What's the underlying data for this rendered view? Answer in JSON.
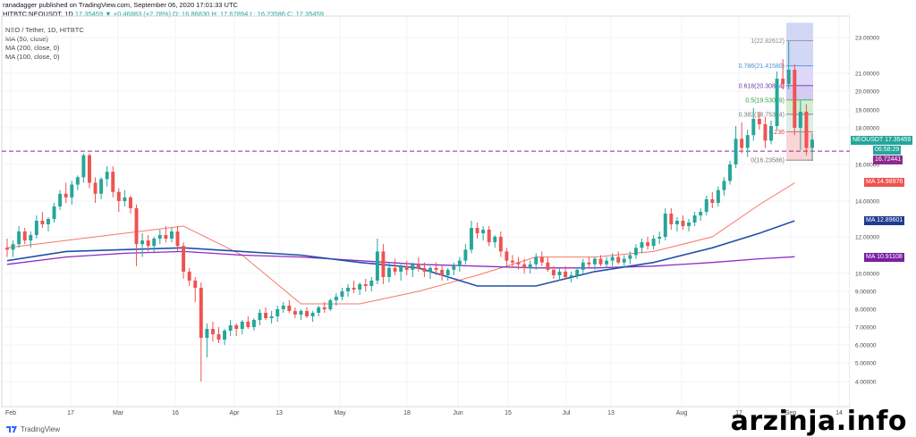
{
  "header": {
    "line1": "ranadagger published on TradingView.com, September 06, 2020 17:01:33 UTC",
    "symbol": "HITBTC:NEOUSDT, 1D",
    "ohlc": "17.35459 ▼ +0.46883 (+2.78%) O: 16.86830 H: 17.67894 L: 16.23586 C: 17.35459"
  },
  "chart_title": "NEO / Tether, 1D, HITBTC",
  "ma_legend": [
    "MA (50, close)",
    "MA (200, close, 0)",
    "MA (100, close, 0)"
  ],
  "price_tags": {
    "neousdt_label": "NEOUSDT",
    "neousdt_value": "17.35459",
    "countdown": "06:58:29",
    "support_value": "16.72441",
    "ma_label": "MA",
    "ma50_value": "14.98976",
    "ma100_value": "12.89601",
    "ma200_value": "10.91108"
  },
  "fib_labels": [
    "1(22.82612)",
    "0.786(21.41580)",
    "0.618(20.30864)",
    "0.5(19.53099)",
    "0.382(18.75334)",
    "0.236",
    "0(16.23586)"
  ],
  "footer": {
    "brand": "TradingView"
  },
  "watermark": "arzinja.info",
  "colors": {
    "up": "#26a69a",
    "down": "#ef5350",
    "ma50": "#f7776a",
    "ma100": "#2151a8",
    "ma200": "#8f2bc4",
    "support": "#8d2a8f"
  },
  "chart_data": {
    "type": "candlestick",
    "title": "NEO / Tether, 1D, HITBTC",
    "y_ticks": [
      "4.00000",
      "5.00000",
      "6.00000",
      "7.00000",
      "8.00000",
      "9.00000",
      "10.00000",
      "12.00000",
      "14.00000",
      "16.00000",
      "18.00000",
      "19.00000",
      "20.00000",
      "21.00000",
      "23.00000"
    ],
    "x_ticks": [
      "Feb",
      "17",
      "Mar",
      "16",
      "Apr",
      "13",
      "May",
      "18",
      "Jun",
      "15",
      "Jul",
      "13",
      "Aug",
      "17",
      "Sep",
      "14"
    ],
    "support_level": 16.72441,
    "fib_levels": [
      22.82612,
      21.4158,
      20.30864,
      19.53099,
      18.75334,
      17.78,
      16.23586
    ],
    "candles_ohlc": [
      [
        11.4,
        11.9,
        10.9,
        11.3
      ],
      [
        11.3,
        11.8,
        10.9,
        11.6
      ],
      [
        11.6,
        12.6,
        11.4,
        12.3
      ],
      [
        12.3,
        12.5,
        11.6,
        11.8
      ],
      [
        11.8,
        12.3,
        11.4,
        12.1
      ],
      [
        12.1,
        13.2,
        11.9,
        12.9
      ],
      [
        12.9,
        13.4,
        12.5,
        12.7
      ],
      [
        12.7,
        13.1,
        12.3,
        13.0
      ],
      [
        13.0,
        13.9,
        12.8,
        13.7
      ],
      [
        13.7,
        14.6,
        13.5,
        14.4
      ],
      [
        14.4,
        15.0,
        13.9,
        14.2
      ],
      [
        14.2,
        15.1,
        13.8,
        14.9
      ],
      [
        14.9,
        15.4,
        14.6,
        15.3
      ],
      [
        15.3,
        16.6,
        15.0,
        16.5
      ],
      [
        16.5,
        16.6,
        14.7,
        15.0
      ],
      [
        15.0,
        15.3,
        13.9,
        14.4
      ],
      [
        14.4,
        15.3,
        14.1,
        15.2
      ],
      [
        15.2,
        15.9,
        14.8,
        15.6
      ],
      [
        15.6,
        15.9,
        14.2,
        14.5
      ],
      [
        14.5,
        14.7,
        13.4,
        14.0
      ],
      [
        14.0,
        14.6,
        13.7,
        14.2
      ],
      [
        14.2,
        14.3,
        13.3,
        13.6
      ],
      [
        13.6,
        13.8,
        10.4,
        11.6
      ],
      [
        11.6,
        12.2,
        10.9,
        11.8
      ],
      [
        11.8,
        12.1,
        11.2,
        11.5
      ],
      [
        11.5,
        12.0,
        11.1,
        11.9
      ],
      [
        11.9,
        12.4,
        11.6,
        12.1
      ],
      [
        12.1,
        12.6,
        11.7,
        11.9
      ],
      [
        11.9,
        12.5,
        11.7,
        12.3
      ],
      [
        12.3,
        12.6,
        11.2,
        11.5
      ],
      [
        11.5,
        11.7,
        9.7,
        10.1
      ],
      [
        10.1,
        10.3,
        9.3,
        9.6
      ],
      [
        9.6,
        9.8,
        8.4,
        9.2
      ],
      [
        9.2,
        9.5,
        4.0,
        6.4
      ],
      [
        6.4,
        7.2,
        5.3,
        6.9
      ],
      [
        6.9,
        7.3,
        6.2,
        6.6
      ],
      [
        6.6,
        7.0,
        6.1,
        6.3
      ],
      [
        6.3,
        6.9,
        6.0,
        6.8
      ],
      [
        6.8,
        7.4,
        6.5,
        7.1
      ],
      [
        7.1,
        7.2,
        6.5,
        6.9
      ],
      [
        6.9,
        7.4,
        6.6,
        7.3
      ],
      [
        7.3,
        7.6,
        6.9,
        7.0
      ],
      [
        7.0,
        7.5,
        6.8,
        7.4
      ],
      [
        7.4,
        8.0,
        7.1,
        7.8
      ],
      [
        7.8,
        8.1,
        7.4,
        7.5
      ],
      [
        7.5,
        7.9,
        7.2,
        7.6
      ],
      [
        7.6,
        8.2,
        7.3,
        8.0
      ],
      [
        8.0,
        8.4,
        7.8,
        8.2
      ],
      [
        8.2,
        8.5,
        7.8,
        7.9
      ],
      [
        7.9,
        8.1,
        7.5,
        7.7
      ],
      [
        7.7,
        8.0,
        7.4,
        7.9
      ],
      [
        7.9,
        8.1,
        7.5,
        7.6
      ],
      [
        7.6,
        7.9,
        7.3,
        7.8
      ],
      [
        7.8,
        8.2,
        7.6,
        8.1
      ],
      [
        8.1,
        8.4,
        7.8,
        8.0
      ],
      [
        8.0,
        8.6,
        7.9,
        8.5
      ],
      [
        8.5,
        8.9,
        8.2,
        8.7
      ],
      [
        8.7,
        9.2,
        8.5,
        9.0
      ],
      [
        9.0,
        9.4,
        8.7,
        9.2
      ],
      [
        9.2,
        9.6,
        8.9,
        9.1
      ],
      [
        9.1,
        9.5,
        8.8,
        9.4
      ],
      [
        9.4,
        9.7,
        9.0,
        9.3
      ],
      [
        9.3,
        9.8,
        9.0,
        9.6
      ],
      [
        9.6,
        11.9,
        9.4,
        11.2
      ],
      [
        11.2,
        11.6,
        9.4,
        9.8
      ],
      [
        9.8,
        10.6,
        9.5,
        10.3
      ],
      [
        10.3,
        10.8,
        9.9,
        10.1
      ],
      [
        10.1,
        10.5,
        9.6,
        10.4
      ],
      [
        10.4,
        10.7,
        9.9,
        10.2
      ],
      [
        10.2,
        10.6,
        9.8,
        10.5
      ],
      [
        10.5,
        10.9,
        10.1,
        10.3
      ],
      [
        10.3,
        10.6,
        9.8,
        10.1
      ],
      [
        10.1,
        10.4,
        9.7,
        10.3
      ],
      [
        10.3,
        10.6,
        9.9,
        10.2
      ],
      [
        10.2,
        10.5,
        9.6,
        9.9
      ],
      [
        9.9,
        10.3,
        9.6,
        10.2
      ],
      [
        10.2,
        10.6,
        9.9,
        10.4
      ],
      [
        10.4,
        10.9,
        10.1,
        10.7
      ],
      [
        10.7,
        11.6,
        10.5,
        11.3
      ],
      [
        11.3,
        12.9,
        11.1,
        12.5
      ],
      [
        12.5,
        12.8,
        11.9,
        12.2
      ],
      [
        12.2,
        12.6,
        11.8,
        12.4
      ],
      [
        12.4,
        12.6,
        11.5,
        11.7
      ],
      [
        11.7,
        12.1,
        11.4,
        12.0
      ],
      [
        12.0,
        12.3,
        10.9,
        11.2
      ],
      [
        11.2,
        11.4,
        10.4,
        10.7
      ],
      [
        10.7,
        11.0,
        10.3,
        10.6
      ],
      [
        10.6,
        10.9,
        10.2,
        10.5
      ],
      [
        10.5,
        10.8,
        10.0,
        10.3
      ],
      [
        10.3,
        10.7,
        10.0,
        10.5
      ],
      [
        10.5,
        11.1,
        10.2,
        10.9
      ],
      [
        10.9,
        11.2,
        10.4,
        10.6
      ],
      [
        10.6,
        10.9,
        10.1,
        10.2
      ],
      [
        10.2,
        10.4,
        9.7,
        9.9
      ],
      [
        9.9,
        10.3,
        9.6,
        10.1
      ],
      [
        10.1,
        10.4,
        9.7,
        9.8
      ],
      [
        9.8,
        10.1,
        9.5,
        9.9
      ],
      [
        9.9,
        10.3,
        9.7,
        10.2
      ],
      [
        10.2,
        10.8,
        10.0,
        10.6
      ],
      [
        10.6,
        10.9,
        10.3,
        10.5
      ],
      [
        10.5,
        10.9,
        10.2,
        10.8
      ],
      [
        10.8,
        11.0,
        10.4,
        10.5
      ],
      [
        10.5,
        10.9,
        10.3,
        10.7
      ],
      [
        10.7,
        11.1,
        10.4,
        10.9
      ],
      [
        10.9,
        11.2,
        10.5,
        10.6
      ],
      [
        10.6,
        11.0,
        10.3,
        10.8
      ],
      [
        10.8,
        11.2,
        10.5,
        11.0
      ],
      [
        11.0,
        11.6,
        10.8,
        11.4
      ],
      [
        11.4,
        11.9,
        11.1,
        11.7
      ],
      [
        11.7,
        12.0,
        11.3,
        11.5
      ],
      [
        11.5,
        12.1,
        11.3,
        11.9
      ],
      [
        11.9,
        12.3,
        11.6,
        12.0
      ],
      [
        12.0,
        13.6,
        11.8,
        13.3
      ],
      [
        13.3,
        13.6,
        12.4,
        12.7
      ],
      [
        12.7,
        13.1,
        12.3,
        12.9
      ],
      [
        12.9,
        13.2,
        12.4,
        12.6
      ],
      [
        12.6,
        13.0,
        12.3,
        12.8
      ],
      [
        12.8,
        13.4,
        12.6,
        13.2
      ],
      [
        13.2,
        13.6,
        12.9,
        13.4
      ],
      [
        13.4,
        14.3,
        13.2,
        14.1
      ],
      [
        14.1,
        14.5,
        13.6,
        13.9
      ],
      [
        13.9,
        14.8,
        13.7,
        14.6
      ],
      [
        14.6,
        15.3,
        14.3,
        15.1
      ],
      [
        15.1,
        16.2,
        14.9,
        16.0
      ],
      [
        16.0,
        18.1,
        15.8,
        17.4
      ],
      [
        17.4,
        18.3,
        16.6,
        16.9
      ],
      [
        16.9,
        17.9,
        16.4,
        17.6
      ],
      [
        17.6,
        19.1,
        17.3,
        18.5
      ],
      [
        18.5,
        18.9,
        17.9,
        18.2
      ],
      [
        18.2,
        18.6,
        16.9,
        17.3
      ],
      [
        17.3,
        18.4,
        17.1,
        18.1
      ],
      [
        18.1,
        21.1,
        17.9,
        20.7
      ],
      [
        20.7,
        21.8,
        20.1,
        20.4
      ],
      [
        20.4,
        22.8,
        20.1,
        21.2
      ],
      [
        21.2,
        21.5,
        17.6,
        18.0
      ],
      [
        18.0,
        19.5,
        16.8,
        18.9
      ],
      [
        18.9,
        19.3,
        16.5,
        16.9
      ],
      [
        16.9,
        17.7,
        16.2,
        17.35459
      ]
    ],
    "series": [
      {
        "name": "MA (50, close)",
        "x": [
          0,
          15,
          30,
          40,
          50,
          60,
          70,
          80,
          90,
          100,
          110,
          120,
          128,
          134
        ],
        "y": [
          11.4,
          12.0,
          12.6,
          11.0,
          8.3,
          8.3,
          9.0,
          9.9,
          10.9,
          10.9,
          11.2,
          12.0,
          13.8,
          14.98976
        ]
      },
      {
        "name": "MA (200, close, 0)",
        "x": [
          0,
          10,
          20,
          30,
          40,
          50,
          60,
          70,
          80,
          90,
          100,
          110,
          120,
          128,
          134
        ],
        "y": [
          10.5,
          10.9,
          11.1,
          11.2,
          11.0,
          10.9,
          10.7,
          10.5,
          10.4,
          10.3,
          10.3,
          10.4,
          10.6,
          10.8,
          10.91108
        ]
      },
      {
        "name": "MA (100, close, 0)",
        "x": [
          0,
          10,
          20,
          30,
          40,
          50,
          60,
          70,
          80,
          90,
          100,
          110,
          120,
          128,
          134
        ],
        "y": [
          10.7,
          11.2,
          11.3,
          11.4,
          11.2,
          11.0,
          10.6,
          10.3,
          9.3,
          9.3,
          10.1,
          10.6,
          11.4,
          12.2,
          12.89601
        ]
      }
    ],
    "legend": "top-left"
  }
}
